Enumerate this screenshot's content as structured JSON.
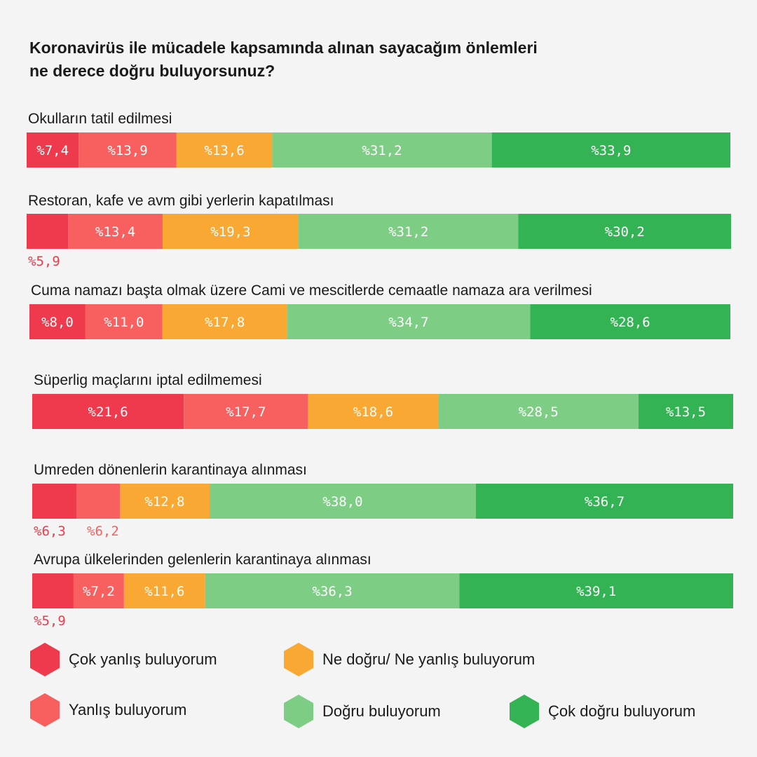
{
  "chart_data": {
    "type": "stacked-bar-horizontal",
    "title_lines": [
      "Koronavirüs ile mücadele kapsamında alınan sayacağım önlemleri",
      "ne derece doğru buluyorsunuz?"
    ],
    "series": [
      {
        "name": "Çok yanlış buluyorum",
        "color": "#ee3a4c"
      },
      {
        "name": "Yanlış buluyorum",
        "color": "#f8605f"
      },
      {
        "name": "Ne doğru/ Ne yanlış buluyorum",
        "color": "#f9a833"
      },
      {
        "name": "Doğru buluyorum",
        "color": "#7ecd85"
      },
      {
        "name": "Çok doğru buluyorum",
        "color": "#33b354"
      }
    ],
    "rows": [
      {
        "label": "Okulların tatil edilmesi",
        "values": [
          7.4,
          13.9,
          13.6,
          31.2,
          33.9
        ],
        "labels": [
          "%7,4",
          "%13,9",
          "%13,6",
          "%31,2",
          "%33,9"
        ]
      },
      {
        "label": "Restoran, kafe ve avm gibi yerlerin kapatılması",
        "values": [
          5.9,
          13.4,
          19.3,
          31.2,
          30.2
        ],
        "labels": [
          "%5,9",
          "%13,4",
          "%19,3",
          "%31,2",
          "%30,2"
        ]
      },
      {
        "label": "Cuma namazı başta olmak üzere Cami ve mescitlerde cemaatle namaza ara verilmesi",
        "values": [
          8.0,
          11.0,
          17.8,
          34.7,
          28.6
        ],
        "labels": [
          "%8,0",
          "%11,0",
          "%17,8",
          "%34,7",
          "%28,6"
        ]
      },
      {
        "label": "Süperlig maçlarını iptal edilmemesi",
        "values": [
          21.6,
          17.7,
          18.6,
          28.5,
          13.5
        ],
        "labels": [
          "%21,6",
          "%17,7",
          "%18,6",
          "%28,5",
          "%13,5"
        ]
      },
      {
        "label": "Umreden dönenlerin karantinaya alınması",
        "values": [
          6.3,
          6.2,
          12.8,
          38.0,
          36.7
        ],
        "labels": [
          "%6,3",
          "%6,2",
          "%12,8",
          "%38,0",
          "%36,7"
        ]
      },
      {
        "label": "Avrupa ülkelerinden gelenlerin karantinaya alınması",
        "values": [
          5.9,
          7.2,
          11.6,
          36.3,
          39.1
        ],
        "labels": [
          "%5,9",
          "%7,2",
          "%11,6",
          "%36,3",
          "%39,1"
        ]
      }
    ]
  }
}
